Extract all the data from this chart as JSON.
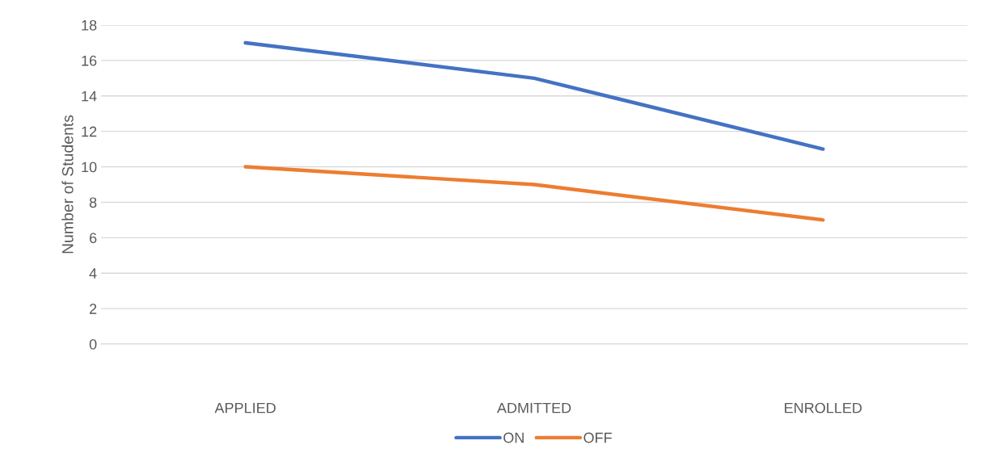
{
  "chart_data": {
    "type": "line",
    "ylabel": "Number of Students",
    "categories": [
      "APPLIED",
      "ADMITTED",
      "ENROLLED"
    ],
    "series": [
      {
        "name": "ON",
        "color": "#4472c4",
        "values": [
          17,
          15,
          11
        ]
      },
      {
        "name": "OFF",
        "color": "#ed7d31",
        "values": [
          10,
          9,
          7
        ]
      }
    ],
    "ylim": [
      0,
      18
    ],
    "yticks": [
      0,
      2,
      4,
      6,
      8,
      10,
      12,
      14,
      16,
      18
    ],
    "grid": "y",
    "legend": "bottom",
    "marker": "none",
    "line_style": "solid"
  }
}
